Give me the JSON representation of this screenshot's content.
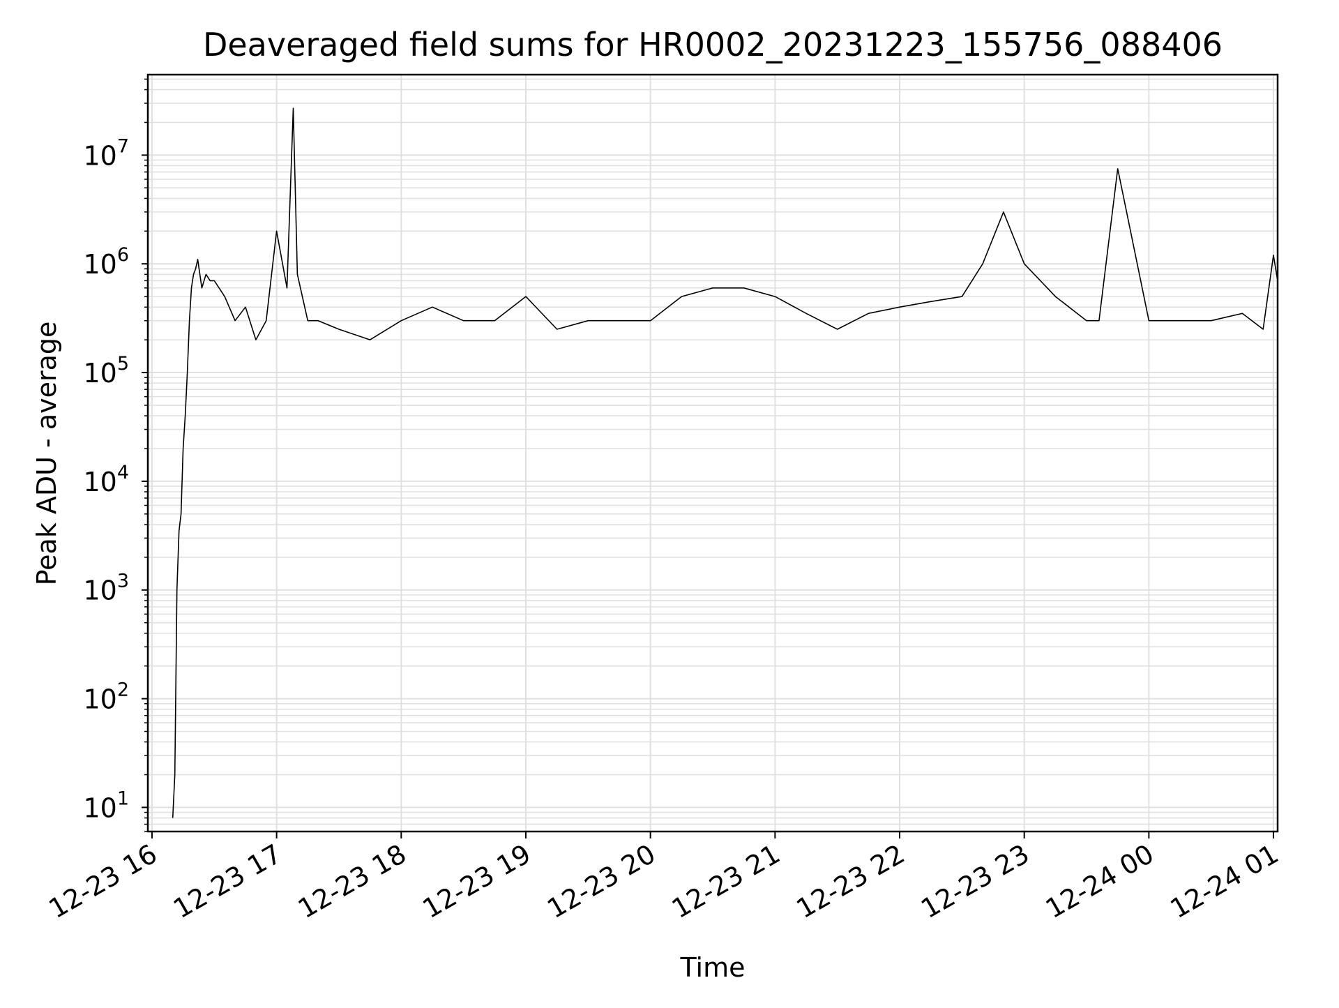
{
  "chart_data": {
    "type": "line",
    "title": "Deaveraged field sums for HR0002_20231223_155756_088406",
    "xlabel": "Time",
    "ylabel": "Peak ADU - average",
    "yscale": "log",
    "ylim": [
      6,
      55000000
    ],
    "xlim": [
      "2023-12-23 15:58",
      "2023-12-24 01:02"
    ],
    "grid": true,
    "line_color": "#000000",
    "grid_color": "#e0e0e0",
    "x_ticks": [
      {
        "label": "12-23 16",
        "x": "2023-12-23 16:00"
      },
      {
        "label": "12-23 17",
        "x": "2023-12-23 17:00"
      },
      {
        "label": "12-23 18",
        "x": "2023-12-23 18:00"
      },
      {
        "label": "12-23 19",
        "x": "2023-12-23 19:00"
      },
      {
        "label": "12-23 20",
        "x": "2023-12-23 20:00"
      },
      {
        "label": "12-23 21",
        "x": "2023-12-23 21:00"
      },
      {
        "label": "12-23 22",
        "x": "2023-12-23 22:00"
      },
      {
        "label": "12-23 23",
        "x": "2023-12-23 23:00"
      },
      {
        "label": "12-24 00",
        "x": "2023-12-24 00:00"
      },
      {
        "label": "12-24 01",
        "x": "2023-12-24 01:00"
      }
    ],
    "y_ticks": [
      {
        "base": "10",
        "exp": "1",
        "value": 10
      },
      {
        "base": "10",
        "exp": "2",
        "value": 100
      },
      {
        "base": "10",
        "exp": "3",
        "value": 1000
      },
      {
        "base": "10",
        "exp": "4",
        "value": 10000
      },
      {
        "base": "10",
        "exp": "5",
        "value": 100000
      },
      {
        "base": "10",
        "exp": "6",
        "value": 1000000
      },
      {
        "base": "10",
        "exp": "7",
        "value": 10000000
      }
    ],
    "series": [
      {
        "x": [
          "2023-12-23 16:10",
          "2023-12-23 16:11",
          "2023-12-23 16:12",
          "2023-12-23 16:13",
          "2023-12-23 16:14",
          "2023-12-23 16:15",
          "2023-12-23 16:16",
          "2023-12-23 16:17",
          "2023-12-23 16:18",
          "2023-12-23 16:19",
          "2023-12-23 16:20",
          "2023-12-23 16:21",
          "2023-12-23 16:22",
          "2023-12-23 16:24",
          "2023-12-23 16:26",
          "2023-12-23 16:28",
          "2023-12-23 16:30",
          "2023-12-23 16:35",
          "2023-12-23 16:40",
          "2023-12-23 16:45",
          "2023-12-23 16:50",
          "2023-12-23 16:55",
          "2023-12-23 17:00",
          "2023-12-23 17:05",
          "2023-12-23 17:08",
          "2023-12-23 17:10",
          "2023-12-23 17:15",
          "2023-12-23 17:20",
          "2023-12-23 17:30",
          "2023-12-23 17:45",
          "2023-12-23 18:00",
          "2023-12-23 18:15",
          "2023-12-23 18:30",
          "2023-12-23 18:45",
          "2023-12-23 19:00",
          "2023-12-23 19:15",
          "2023-12-23 19:30",
          "2023-12-23 19:45",
          "2023-12-23 20:00",
          "2023-12-23 20:15",
          "2023-12-23 20:30",
          "2023-12-23 20:45",
          "2023-12-23 21:00",
          "2023-12-23 21:15",
          "2023-12-23 21:30",
          "2023-12-23 21:45",
          "2023-12-23 22:00",
          "2023-12-23 22:15",
          "2023-12-23 22:30",
          "2023-12-23 22:40",
          "2023-12-23 22:50",
          "2023-12-23 23:00",
          "2023-12-23 23:15",
          "2023-12-23 23:30",
          "2023-12-23 23:36",
          "2023-12-23 23:45",
          "2023-12-24 00:00",
          "2023-12-24 00:15",
          "2023-12-24 00:30",
          "2023-12-24 00:45",
          "2023-12-24 00:55",
          "2023-12-24 01:00",
          "2023-12-24 01:02"
        ],
        "values": [
          8,
          20,
          1000,
          3500,
          5000,
          20000,
          40000,
          100000,
          300000,
          600000,
          800000,
          900000,
          1100000,
          600000,
          800000,
          700000,
          700000,
          500000,
          300000,
          400000,
          200000,
          300000,
          2000000,
          600000,
          27000000,
          800000,
          300000,
          300000,
          250000,
          200000,
          300000,
          400000,
          300000,
          300000,
          500000,
          250000,
          300000,
          300000,
          300000,
          500000,
          600000,
          600000,
          500000,
          350000,
          250000,
          350000,
          400000,
          450000,
          500000,
          1000000,
          3000000,
          1000000,
          500000,
          300000,
          300000,
          7500000,
          300000,
          300000,
          300000,
          350000,
          250000,
          1200000,
          700000
        ]
      }
    ]
  }
}
